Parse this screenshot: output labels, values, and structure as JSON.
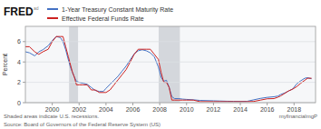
{
  "chart_data": {
    "type": "line",
    "annotations": [
      "FRED",
      "ad",
      "Shaded areas indicate U.S. recessions.",
      "Source: Board of Governors of the Federal Reserve System (US)",
      "myfinancialmgP"
    ],
    "y_label": "Percent",
    "x": [
      1998.0,
      1998.3,
      1998.7,
      1999.0,
      1999.3,
      1999.7,
      2000.0,
      2000.3,
      2000.6,
      2000.8,
      2001.0,
      2001.2,
      2001.35,
      2001.5,
      2001.65,
      2001.8,
      2002.0,
      2002.3,
      2002.6,
      2002.9,
      2003.2,
      2003.5,
      2003.8,
      2004.0,
      2004.3,
      2004.6,
      2004.9,
      2005.2,
      2005.5,
      2005.8,
      2006.1,
      2006.4,
      2006.7,
      2007.0,
      2007.3,
      2007.6,
      2007.9,
      2008.1,
      2008.3,
      2008.5,
      2008.7,
      2008.9,
      2009.1,
      2009.4,
      2009.7,
      2010.0,
      2010.5,
      2011.0,
      2011.5,
      2012.0,
      2012.5,
      2013.0,
      2013.5,
      2014.0,
      2014.5,
      2015.0,
      2015.5,
      2016.0,
      2016.5,
      2016.8,
      2017.0,
      2017.3,
      2017.6,
      2017.9,
      2018.2,
      2018.5,
      2018.8,
      2019.0,
      2019.3
    ],
    "series": [
      {
        "name": "1-Year Treasury Constant Maturity Rate",
        "color": "#4472c4",
        "values": [
          5.0,
          4.9,
          4.6,
          5.0,
          5.2,
          5.6,
          6.1,
          6.5,
          6.4,
          6.0,
          5.2,
          4.2,
          3.5,
          3.0,
          2.5,
          2.1,
          2.0,
          1.9,
          1.8,
          1.5,
          1.2,
          1.1,
          1.1,
          1.4,
          1.8,
          2.2,
          2.6,
          3.1,
          3.6,
          4.2,
          4.8,
          5.1,
          5.2,
          5.1,
          4.9,
          4.5,
          3.5,
          2.5,
          2.1,
          2.2,
          1.5,
          0.6,
          0.4,
          0.4,
          0.35,
          0.32,
          0.28,
          0.22,
          0.2,
          0.18,
          0.16,
          0.14,
          0.13,
          0.12,
          0.13,
          0.28,
          0.42,
          0.52,
          0.58,
          0.65,
          0.8,
          0.95,
          1.15,
          1.35,
          1.85,
          2.15,
          2.4,
          2.45,
          2.35
        ]
      },
      {
        "name": "Effective Federal Funds Rate",
        "color": "#cc2222",
        "values": [
          5.5,
          5.5,
          5.0,
          4.75,
          5.0,
          5.25,
          6.0,
          6.5,
          6.5,
          6.5,
          5.5,
          4.5,
          3.75,
          3.0,
          2.5,
          1.75,
          1.75,
          1.75,
          1.75,
          1.25,
          1.25,
          1.0,
          1.0,
          1.0,
          1.25,
          1.75,
          2.25,
          2.75,
          3.25,
          4.0,
          4.75,
          5.25,
          5.25,
          5.25,
          5.25,
          4.75,
          4.25,
          3.0,
          2.0,
          2.0,
          1.5,
          0.25,
          0.25,
          0.25,
          0.25,
          0.25,
          0.25,
          0.1,
          0.1,
          0.1,
          0.1,
          0.1,
          0.1,
          0.1,
          0.1,
          0.12,
          0.25,
          0.38,
          0.4,
          0.54,
          0.66,
          0.91,
          1.16,
          1.33,
          1.58,
          1.91,
          2.2,
          2.4,
          2.4
        ]
      }
    ],
    "recession_bands": [
      [
        2001.25,
        2001.92
      ],
      [
        2007.92,
        2009.5
      ]
    ],
    "xlim": [
      1998.0,
      2019.6
    ],
    "xticks": [
      2000,
      2002,
      2004,
      2006,
      2008,
      2010,
      2012,
      2014,
      2016,
      2018
    ],
    "ylim": [
      0,
      7.5
    ],
    "yticks": [
      0,
      2,
      4,
      6
    ],
    "grid": true,
    "legend": "top-left"
  }
}
